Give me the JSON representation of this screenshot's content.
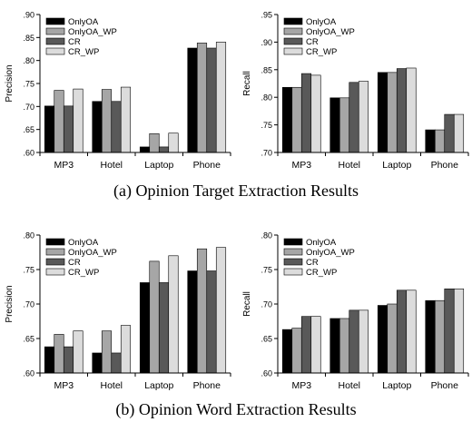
{
  "captions": {
    "a": "(a) Opinion Target Extraction Results",
    "b": "(b) Opinion Word Extraction Results"
  },
  "series_colors": [
    "#000000",
    "#a6a6a6",
    "#595959",
    "#dcdcdc"
  ],
  "chart_data": [
    {
      "type": "bar",
      "title": "",
      "xlabel": "",
      "ylabel": "Precision",
      "ylim": [
        0.6,
        0.9
      ],
      "yticks": [
        0.6,
        0.65,
        0.7,
        0.75,
        0.8,
        0.85,
        0.9
      ],
      "ytick_labels": [
        ".60",
        ".65",
        ".70",
        ".75",
        ".80",
        ".85",
        ".90"
      ],
      "categories": [
        "MP3",
        "Hotel",
        "Laptop",
        "Phone"
      ],
      "legend": "top-left",
      "grid": false,
      "series": [
        {
          "name": "OnlyOA",
          "values": [
            0.701,
            0.711,
            0.612,
            0.827
          ]
        },
        {
          "name": "OnlyOA_WP",
          "values": [
            0.735,
            0.737,
            0.641,
            0.838
          ]
        },
        {
          "name": "CR",
          "values": [
            0.701,
            0.711,
            0.612,
            0.827
          ]
        },
        {
          "name": "CR_WP",
          "values": [
            0.738,
            0.742,
            0.642,
            0.84
          ]
        }
      ]
    },
    {
      "type": "bar",
      "title": "",
      "xlabel": "",
      "ylabel": "Recall",
      "ylim": [
        0.7,
        0.95
      ],
      "yticks": [
        0.7,
        0.75,
        0.8,
        0.85,
        0.9,
        0.95
      ],
      "ytick_labels": [
        ".70",
        ".75",
        ".80",
        ".85",
        ".90",
        ".95"
      ],
      "categories": [
        "MP3",
        "Hotel",
        "Laptop",
        "Phone"
      ],
      "legend": "top-left",
      "grid": false,
      "series": [
        {
          "name": "OnlyOA",
          "values": [
            0.818,
            0.799,
            0.845,
            0.741
          ]
        },
        {
          "name": "OnlyOA_WP",
          "values": [
            0.818,
            0.799,
            0.845,
            0.741
          ]
        },
        {
          "name": "CR",
          "values": [
            0.843,
            0.827,
            0.852,
            0.769
          ]
        },
        {
          "name": "CR_WP",
          "values": [
            0.84,
            0.829,
            0.853,
            0.769
          ]
        }
      ]
    },
    {
      "type": "bar",
      "title": "",
      "xlabel": "",
      "ylabel": "Precision",
      "ylim": [
        0.6,
        0.8
      ],
      "yticks": [
        0.6,
        0.65,
        0.7,
        0.75,
        0.8
      ],
      "ytick_labels": [
        ".60",
        ".65",
        ".70",
        ".75",
        ".80"
      ],
      "categories": [
        "MP3",
        "Hotel",
        "Laptop",
        "Phone"
      ],
      "legend": "top-left",
      "grid": false,
      "series": [
        {
          "name": "OnlyOA",
          "values": [
            0.638,
            0.629,
            0.731,
            0.748
          ]
        },
        {
          "name": "OnlyOA_WP",
          "values": [
            0.656,
            0.661,
            0.762,
            0.78
          ]
        },
        {
          "name": "CR",
          "values": [
            0.638,
            0.629,
            0.731,
            0.748
          ]
        },
        {
          "name": "CR_WP",
          "values": [
            0.661,
            0.669,
            0.77,
            0.782
          ]
        }
      ]
    },
    {
      "type": "bar",
      "title": "",
      "xlabel": "",
      "ylabel": "Recall",
      "ylim": [
        0.6,
        0.8
      ],
      "yticks": [
        0.6,
        0.65,
        0.7,
        0.75,
        0.8
      ],
      "ytick_labels": [
        ".60",
        ".65",
        ".70",
        ".75",
        ".80"
      ],
      "categories": [
        "MP3",
        "Hotel",
        "Laptop",
        "Phone"
      ],
      "legend": "top-left",
      "grid": false,
      "series": [
        {
          "name": "OnlyOA",
          "values": [
            0.663,
            0.679,
            0.698,
            0.705
          ]
        },
        {
          "name": "OnlyOA_WP",
          "values": [
            0.665,
            0.679,
            0.7,
            0.705
          ]
        },
        {
          "name": "CR",
          "values": [
            0.682,
            0.691,
            0.72,
            0.722
          ]
        },
        {
          "name": "CR_WP",
          "values": [
            0.682,
            0.691,
            0.72,
            0.722
          ]
        }
      ]
    }
  ]
}
